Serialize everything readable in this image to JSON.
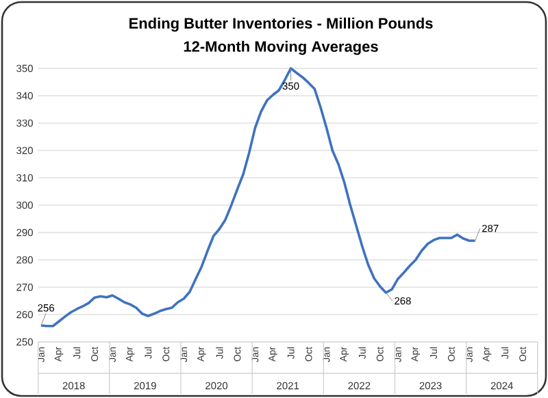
{
  "chart_data": {
    "type": "line",
    "title": "Ending Butter Inventories - Million Pounds",
    "subtitle": "12-Month Moving Averages",
    "categories": [
      "Jan",
      null,
      null,
      "Apr",
      null,
      null,
      "Jul",
      null,
      null,
      "Oct",
      null,
      null,
      "Jan",
      null,
      null,
      "Apr",
      null,
      null,
      "Jul",
      null,
      null,
      "Oct",
      null,
      null,
      "Jan",
      null,
      null,
      "Apr",
      null,
      null,
      "Jul",
      null,
      null,
      "Oct",
      null,
      null,
      "Jan",
      null,
      null,
      "Apr",
      null,
      null,
      "Jul",
      null,
      null,
      "Oct",
      null,
      null,
      "Jan",
      null,
      null,
      "Apr",
      null,
      null,
      "Jul",
      null,
      null,
      "Oct",
      null,
      null,
      "Jan",
      null,
      null,
      "Apr",
      null,
      null,
      "Jul",
      null,
      null,
      "Oct",
      null,
      null,
      "Jan",
      null,
      null,
      "Apr",
      null,
      null,
      "Jul",
      null,
      null,
      "Oct",
      null,
      null
    ],
    "values": [
      256,
      255.8,
      255.8,
      257.5,
      259.2,
      260.8,
      262,
      263,
      264.2,
      266.2,
      266.7,
      266.3,
      267,
      265.8,
      264.5,
      263.7,
      262.5,
      260.3,
      259.5,
      260.3,
      261.3,
      262,
      262.5,
      264.5,
      265.8,
      268.3,
      273,
      277.5,
      283.3,
      288.7,
      291.3,
      294.7,
      300,
      305.8,
      311.3,
      319.2,
      328.3,
      334.2,
      338.3,
      340.3,
      342,
      345.8,
      350,
      348.3,
      346.7,
      344.7,
      342.5,
      335.8,
      328.3,
      320,
      315,
      308.3,
      300,
      292.5,
      285,
      278.3,
      273.3,
      270.3,
      268,
      269.2,
      273,
      275.3,
      277.8,
      280,
      283.3,
      285.8,
      287.2,
      288,
      288,
      288,
      289.2,
      287.8,
      287,
      287,
      null,
      null,
      null,
      null,
      null,
      null,
      null,
      null,
      null,
      null
    ],
    "value_labels": [
      "256",
      null,
      null,
      null,
      null,
      null,
      null,
      null,
      null,
      null,
      null,
      null,
      null,
      null,
      null,
      null,
      null,
      null,
      null,
      null,
      null,
      null,
      null,
      null,
      null,
      null,
      null,
      null,
      null,
      null,
      null,
      null,
      null,
      null,
      null,
      null,
      null,
      null,
      null,
      null,
      null,
      null,
      "350",
      null,
      null,
      null,
      null,
      null,
      null,
      null,
      null,
      null,
      null,
      null,
      null,
      null,
      null,
      null,
      "268",
      null,
      null,
      null,
      null,
      null,
      null,
      null,
      null,
      null,
      null,
      null,
      null,
      null,
      null,
      "287",
      null,
      null,
      null,
      null,
      null,
      null,
      null,
      null,
      null,
      null
    ],
    "color": "#3f72c0",
    "ylim": [
      250,
      350
    ],
    "yticks": [
      250,
      260,
      270,
      280,
      290,
      300,
      310,
      320,
      330,
      340,
      350
    ],
    "grid": "y",
    "annotations": [
      "2018",
      "2019",
      "2020",
      "2021",
      "2022",
      "2023",
      "2024"
    ]
  }
}
